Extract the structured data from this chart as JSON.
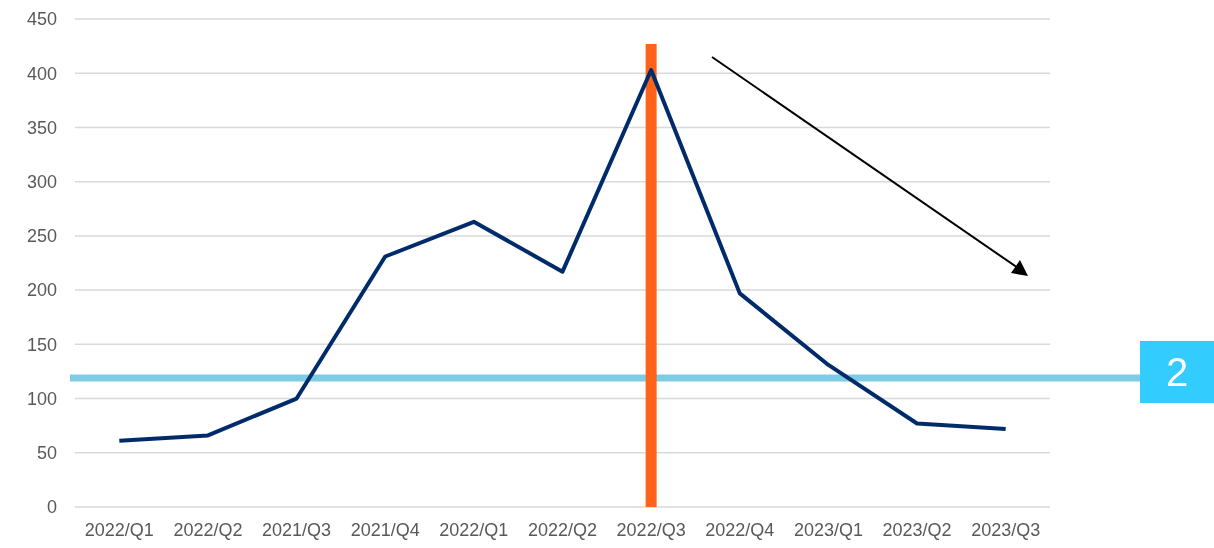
{
  "chart_data": {
    "type": "line",
    "categories": [
      "2022/Q1",
      "2022/Q2",
      "2021/Q3",
      "2021/Q4",
      "2022/Q1",
      "2022/Q2",
      "2022/Q3",
      "2022/Q4",
      "2023/Q1",
      "2023/Q2",
      "2023/Q3"
    ],
    "series": [
      {
        "color": "#002b6b",
        "values": [
          61,
          66,
          100,
          231,
          263,
          217,
          403,
          197,
          131,
          77,
          72
        ]
      }
    ],
    "ylim": [
      0,
      450
    ],
    "yticks": [
      0,
      50,
      100,
      150,
      200,
      250,
      300,
      350,
      400,
      450
    ],
    "grid": "y",
    "annotations": [
      "2"
    ],
    "marker": "none",
    "line_style": "solid",
    "ref_lines": [
      {
        "axis": "y",
        "value": 119,
        "color": "#7ecbe6"
      },
      {
        "axis": "x",
        "value": "2022/Q3",
        "color": "#ff6319"
      }
    ]
  }
}
